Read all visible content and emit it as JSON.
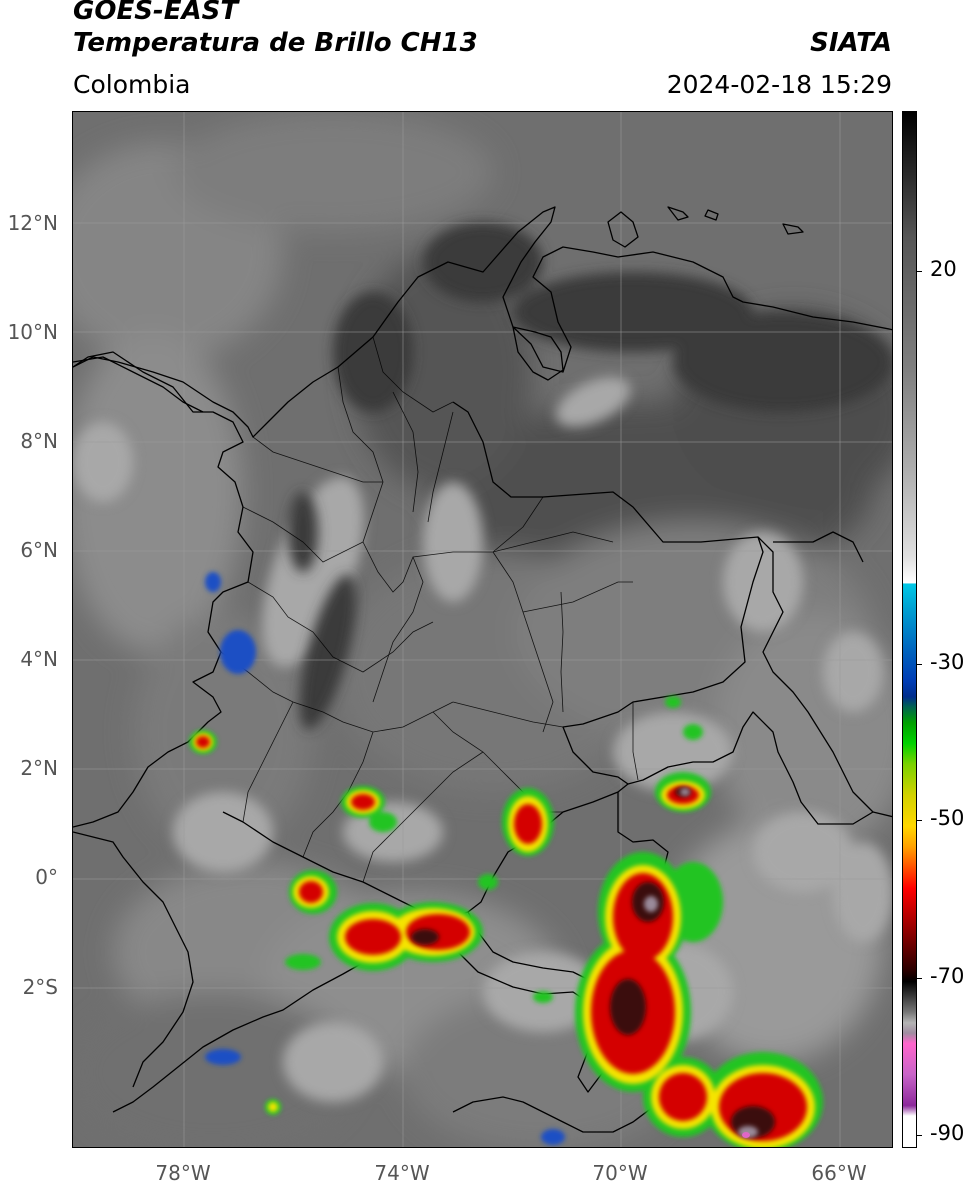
{
  "header": {
    "title_line1": "GOES-EAST",
    "title_line2": "Temperatura de Brillo CH13",
    "organization": "SIATA",
    "region": "Colombia",
    "datetime": "2024-02-18 15:29"
  },
  "map": {
    "lat_labels": [
      "12°N",
      "10°N",
      "8°N",
      "6°N",
      "4°N",
      "2°N",
      "0°",
      "2°S"
    ],
    "lon_labels": [
      "78°W",
      "74°W",
      "70°W",
      "66°W"
    ],
    "colors": {
      "cloud_gray": "#6e6e6e",
      "land_dark": "#3c3c3c",
      "boundary": "#000000",
      "storm_red": "#d40000",
      "storm_yellow": "#f5e400",
      "storm_green": "#22c422",
      "storm_blue": "#1e4fc4"
    }
  },
  "colorbar": {
    "tick_labels": [
      "20",
      "-30",
      "-50",
      "-70",
      "-90"
    ],
    "colors": [
      "#000000",
      "#ffffff",
      "#00c8e6",
      "#003cb4",
      "#00d200",
      "#ffd700",
      "#ff0000",
      "#000000",
      "#ff00c8",
      "#ffffff"
    ]
  }
}
